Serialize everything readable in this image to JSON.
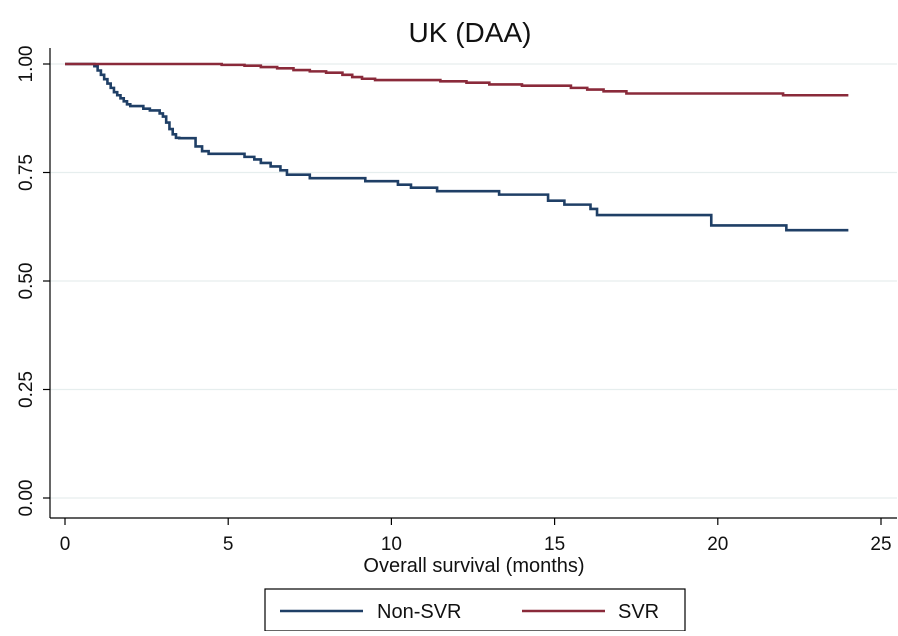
{
  "chart_data": {
    "type": "line",
    "step": true,
    "title": "UK (DAA)",
    "xlabel": "Overall survival (months)",
    "ylabel": "",
    "xlim": [
      0,
      25
    ],
    "ylim": [
      0,
      1
    ],
    "xticks": [
      0,
      5,
      10,
      15,
      20,
      25
    ],
    "xtick_labels": [
      "0",
      "5",
      "10",
      "15",
      "20",
      "25"
    ],
    "yticks": [
      0,
      0.25,
      0.5,
      0.75,
      1
    ],
    "ytick_labels": [
      "0.00",
      "0.25",
      "0.50",
      "0.75",
      "1.00"
    ],
    "grid": true,
    "legend_position": "bottom",
    "series": [
      {
        "name": "Non-SVR",
        "color": "#1f3f66",
        "x": [
          0,
          0.9,
          1.0,
          1.1,
          1.2,
          1.3,
          1.4,
          1.5,
          1.6,
          1.7,
          1.8,
          1.9,
          2.0,
          2.2,
          2.4,
          2.6,
          2.9,
          3.0,
          3.1,
          3.2,
          3.3,
          3.4,
          3.5,
          4.0,
          4.2,
          4.4,
          5.5,
          5.8,
          6.0,
          6.3,
          6.6,
          6.8,
          7.5,
          9.2,
          10.2,
          10.6,
          11.4,
          13.3,
          14.8,
          15.3,
          16.1,
          16.3,
          19.8,
          22.1,
          24.0
        ],
        "y": [
          1.0,
          0.995,
          0.985,
          0.975,
          0.965,
          0.955,
          0.945,
          0.935,
          0.928,
          0.921,
          0.914,
          0.907,
          0.903,
          0.903,
          0.897,
          0.893,
          0.886,
          0.879,
          0.865,
          0.85,
          0.838,
          0.83,
          0.829,
          0.81,
          0.799,
          0.793,
          0.786,
          0.78,
          0.772,
          0.764,
          0.755,
          0.745,
          0.737,
          0.73,
          0.722,
          0.715,
          0.707,
          0.699,
          0.685,
          0.676,
          0.666,
          0.652,
          0.628,
          0.617,
          0.617
        ]
      },
      {
        "name": "SVR",
        "color": "#8a2a3a",
        "x": [
          0,
          4.8,
          5.5,
          6.0,
          6.5,
          7.0,
          7.5,
          8.0,
          8.5,
          8.8,
          9.1,
          9.5,
          11.5,
          12.3,
          13.0,
          14.0,
          15.5,
          16.0,
          16.5,
          17.2,
          22.0,
          24.0
        ],
        "y": [
          1.0,
          0.998,
          0.996,
          0.993,
          0.99,
          0.986,
          0.983,
          0.98,
          0.975,
          0.97,
          0.966,
          0.963,
          0.96,
          0.957,
          0.953,
          0.95,
          0.945,
          0.941,
          0.937,
          0.932,
          0.928,
          0.928
        ]
      }
    ]
  }
}
